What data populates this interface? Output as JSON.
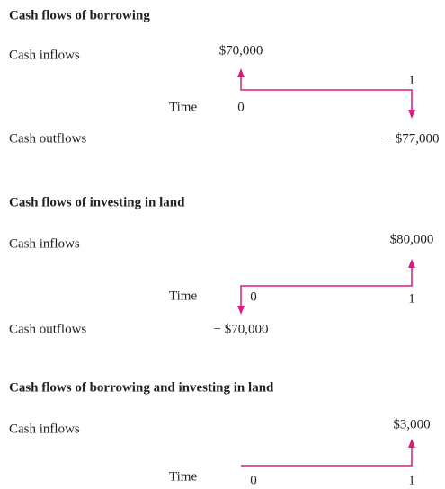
{
  "sections": [
    {
      "title": "Cash flows of borrowing",
      "inflow_label": "Cash inflows",
      "outflow_label": "Cash outflows",
      "time_label": "Time",
      "periods": [
        "0",
        "1"
      ],
      "inflow": "$70,000",
      "outflow": "− $77,000"
    },
    {
      "title": "Cash flows of investing in land",
      "inflow_label": "Cash inflows",
      "outflow_label": "Cash outflows",
      "time_label": "Time",
      "periods": [
        "0",
        "1"
      ],
      "inflow": "$80,000",
      "outflow": "− $70,000"
    },
    {
      "title": "Cash flows of borrowing and investing in land",
      "inflow_label": "Cash inflows",
      "time_label": "Time",
      "periods": [
        "0",
        "1"
      ],
      "inflow": "$3,000"
    }
  ]
}
